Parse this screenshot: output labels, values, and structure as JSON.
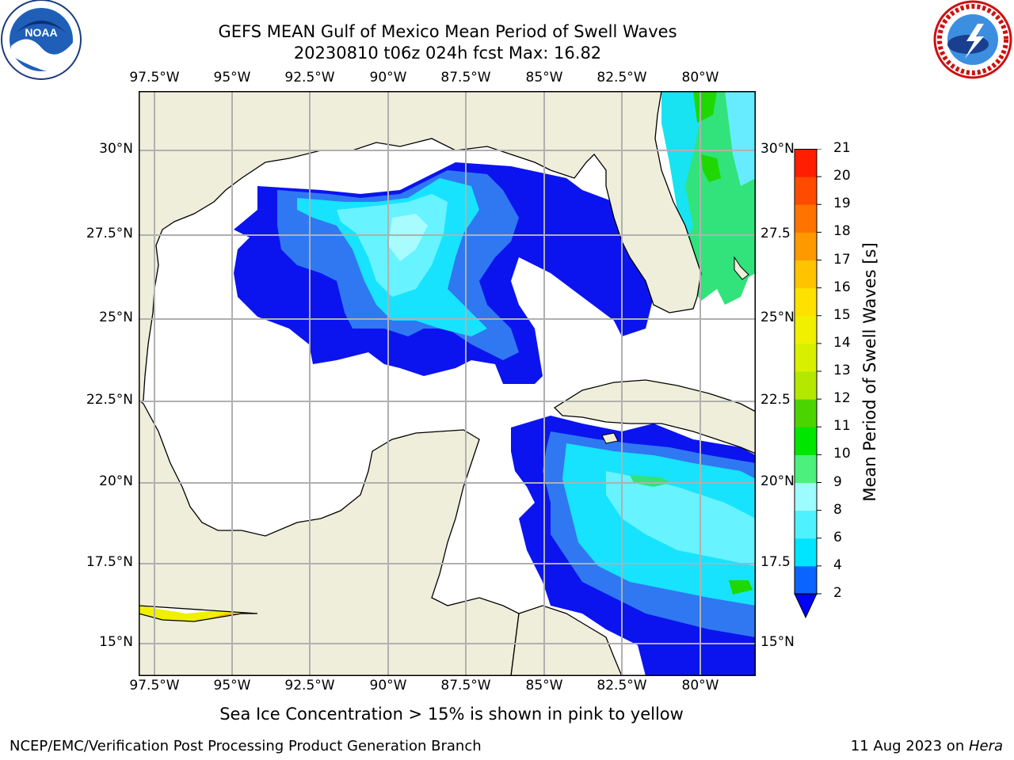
{
  "header": {
    "title_line1": "GEFS MEAN Gulf of Mexico Mean Period of Swell Waves",
    "title_line2": "20230810 t06z 024h fcst   Max: 16.82"
  },
  "logos": {
    "left": {
      "icon": "noaa-logo-icon",
      "text": "NOAA"
    },
    "right": {
      "icon": "nws-logo-icon"
    }
  },
  "map": {
    "lon_ticks": [
      "97.5°W",
      "95°W",
      "92.5°W",
      "90°W",
      "87.5°W",
      "85°W",
      "82.5°W",
      "80°W"
    ],
    "lat_ticks_left": [
      "30°N",
      "27.5°N",
      "25°N",
      "22.5°N",
      "20°N",
      "17.5°N",
      "15°N"
    ],
    "lat_ticks_right": [
      "30°N",
      "27.5",
      "25°N",
      "22.5",
      "20°N",
      "17.5",
      "15°N"
    ],
    "land_color": "#efeedb",
    "ocean_empty_color": "#ffffff"
  },
  "colorbar": {
    "label": "Mean Period of Swell Waves [s]",
    "ticks": [
      "2",
      "4",
      "6",
      "8",
      "9",
      "10",
      "11",
      "12",
      "13",
      "14",
      "15",
      "16",
      "17",
      "18",
      "19",
      "20",
      "21"
    ],
    "colors": [
      "#0a64ff",
      "#00e5ff",
      "#4ef2ff",
      "#9dfcff",
      "#4cf07c",
      "#00e600",
      "#4cd400",
      "#b4e800",
      "#d8f000",
      "#f0f000",
      "#ffe100",
      "#ffc300",
      "#ff9900",
      "#ff7400",
      "#ff4b00",
      "#ff1e00"
    ],
    "extend_color": "#0000ff"
  },
  "footer": {
    "subtitle": "Sea Ice Concentration > 15% is shown in pink to yellow",
    "left": "NCEP/EMC/Verification Post Processing Product Generation Branch",
    "right_date": "11 Aug 2023 on ",
    "right_host": "Hera"
  }
}
